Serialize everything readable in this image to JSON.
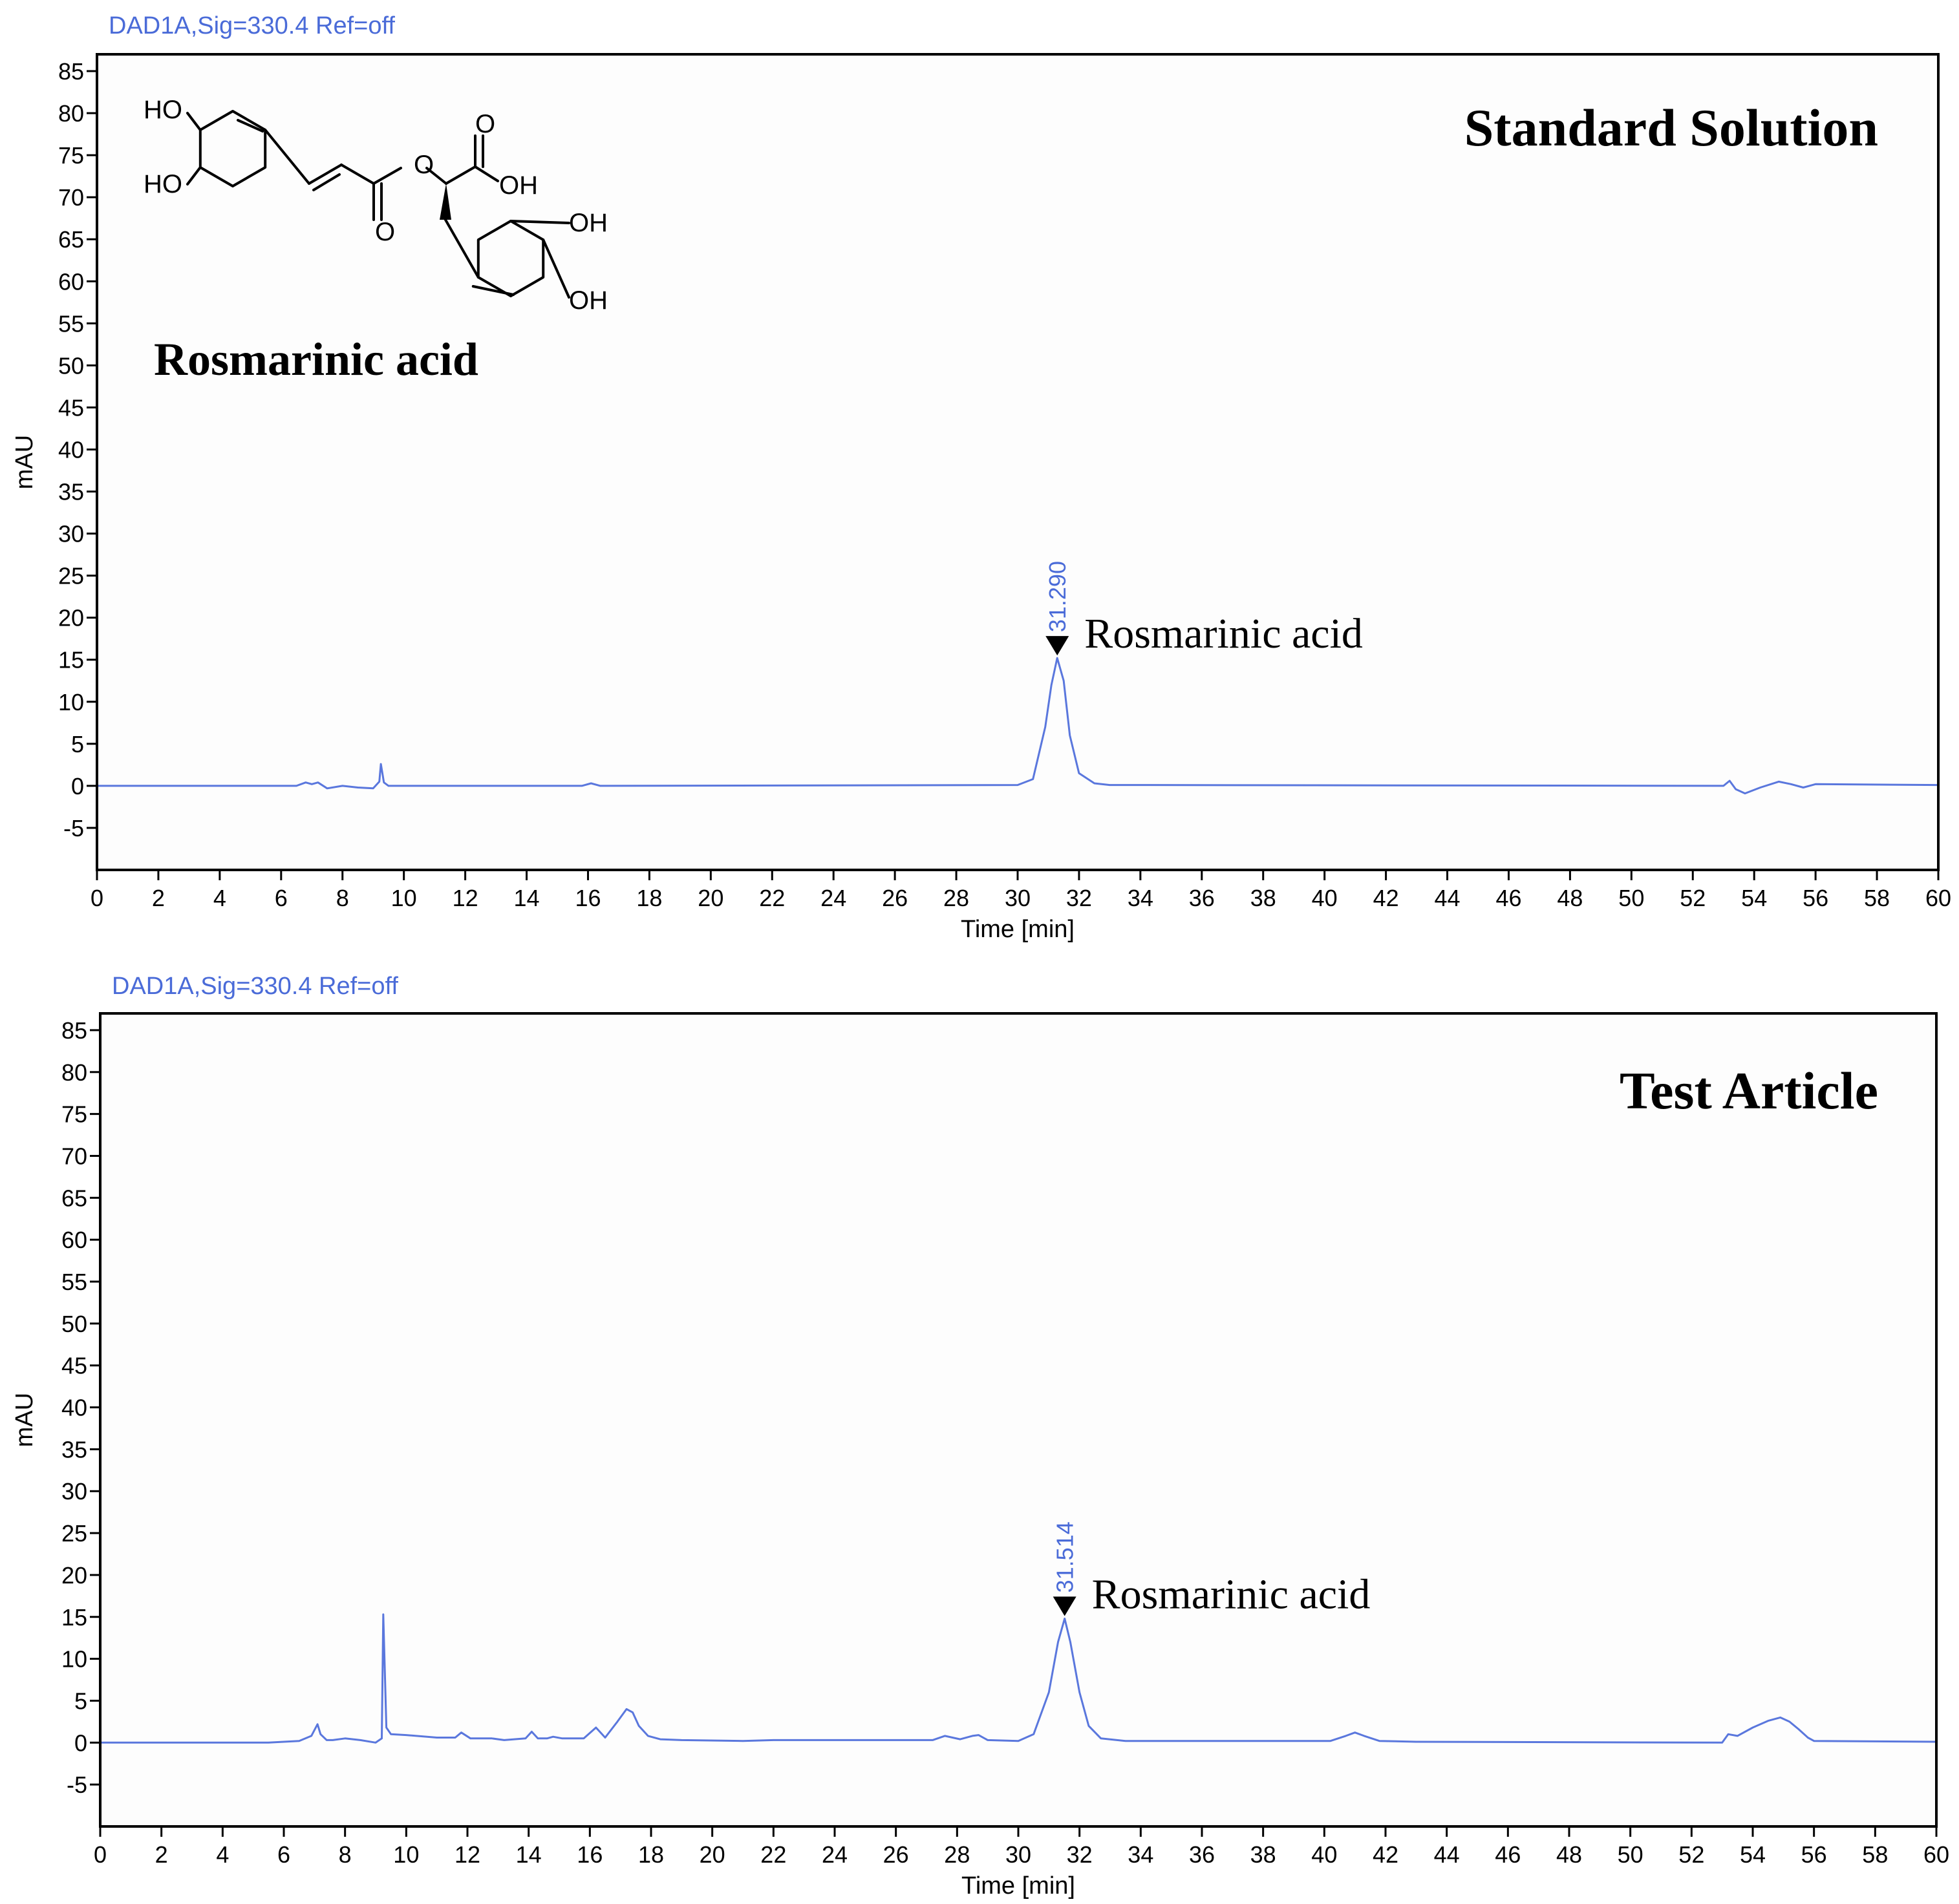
{
  "colors": {
    "trace": "#5A77DD",
    "signal_label": "#4A6BD8",
    "peak_label": "#4A6BD8",
    "axis": "#000000",
    "plot_background": "#FDFDFD",
    "page_background": "#FFFFFF"
  },
  "chart_data": [
    {
      "type": "line",
      "signal_label": "DAD1A,Sig=330.4  Ref=off",
      "panel_title": "Standard Solution",
      "inset": {
        "compound_name": "Rosmarinic acid",
        "structure_labels": [
          "HO",
          "HO",
          "O",
          "O",
          "O",
          "OH",
          "OH",
          "OH"
        ]
      },
      "xlabel": "Time [min]",
      "ylabel": "mAU",
      "xlim": [
        0,
        60
      ],
      "ylim": [
        -10,
        87
      ],
      "xticks": [
        0,
        2,
        4,
        6,
        8,
        10,
        12,
        14,
        16,
        18,
        20,
        22,
        24,
        26,
        28,
        30,
        32,
        34,
        36,
        38,
        40,
        42,
        44,
        46,
        48,
        50,
        52,
        54,
        56,
        58,
        60
      ],
      "yticks": [
        -5,
        0,
        5,
        10,
        15,
        20,
        25,
        30,
        35,
        40,
        45,
        50,
        55,
        60,
        65,
        70,
        75,
        80,
        85
      ],
      "peak": {
        "rt": 31.29,
        "rt_label": "31.290",
        "height": 15.2,
        "annotation": "Rosmarinic acid"
      },
      "series": [
        {
          "x": [
            0,
            6.5,
            6.8,
            7.0,
            7.2,
            7.5,
            8.0,
            8.5,
            9.0,
            9.2,
            9.25,
            9.35,
            9.5,
            10.0,
            15.8,
            16.1,
            16.4,
            30.0,
            30.5,
            30.9,
            31.1,
            31.29,
            31.5,
            31.7,
            32.0,
            32.5,
            33.0,
            53.0,
            53.2,
            53.4,
            53.7,
            54.2,
            54.8,
            55.2,
            55.6,
            56.0,
            60
          ],
          "y": [
            0,
            0,
            0.4,
            0.2,
            0.4,
            -0.3,
            0,
            -0.2,
            -0.3,
            0.5,
            2.6,
            0.4,
            0,
            0,
            0,
            0.3,
            0,
            0.1,
            0.8,
            7.0,
            12.0,
            15.2,
            12.5,
            6.0,
            1.5,
            0.3,
            0.1,
            0,
            0.6,
            -0.4,
            -0.9,
            -0.2,
            0.5,
            0.2,
            -0.2,
            0.2,
            0.1
          ]
        }
      ]
    },
    {
      "type": "line",
      "signal_label": "DAD1A,Sig=330.4  Ref=off",
      "panel_title": "Test Article",
      "xlabel": "Time [min]",
      "ylabel": "mAU",
      "xlim": [
        0,
        60
      ],
      "ylim": [
        -10,
        87
      ],
      "xticks": [
        0,
        2,
        4,
        6,
        8,
        10,
        12,
        14,
        16,
        18,
        20,
        22,
        24,
        26,
        28,
        30,
        32,
        34,
        36,
        38,
        40,
        42,
        44,
        46,
        48,
        50,
        52,
        54,
        56,
        58,
        60
      ],
      "yticks": [
        -5,
        0,
        5,
        10,
        15,
        20,
        25,
        30,
        35,
        40,
        45,
        50,
        55,
        60,
        65,
        70,
        75,
        80,
        85
      ],
      "peak": {
        "rt": 31.514,
        "rt_label": "31.514",
        "height": 14.8,
        "annotation": "Rosmarinic acid"
      },
      "series": [
        {
          "x": [
            0,
            5.5,
            6.5,
            6.9,
            7.1,
            7.2,
            7.4,
            7.6,
            8.0,
            8.5,
            9.0,
            9.2,
            9.25,
            9.35,
            9.5,
            10.0,
            11.0,
            11.6,
            11.8,
            12.1,
            12.8,
            13.2,
            13.9,
            14.1,
            14.3,
            14.6,
            14.8,
            15.1,
            15.8,
            16.2,
            16.5,
            16.9,
            17.2,
            17.4,
            17.6,
            17.9,
            18.3,
            19.0,
            21.0,
            22.0,
            27.2,
            27.6,
            28.1,
            28.5,
            28.7,
            29.0,
            30.0,
            30.5,
            31.0,
            31.3,
            31.514,
            31.7,
            32.0,
            32.3,
            32.7,
            33.5,
            40.2,
            40.7,
            41.0,
            41.3,
            41.8,
            43.0,
            53.0,
            53.2,
            53.5,
            54.0,
            54.5,
            54.9,
            55.2,
            55.5,
            55.8,
            56.0,
            60
          ],
          "y": [
            0,
            0,
            0.2,
            0.8,
            2.2,
            1.0,
            0.3,
            0.3,
            0.5,
            0.3,
            0.0,
            0.5,
            15.3,
            1.8,
            1.0,
            0.9,
            0.6,
            0.6,
            1.2,
            0.5,
            0.5,
            0.3,
            0.5,
            1.3,
            0.5,
            0.5,
            0.7,
            0.5,
            0.5,
            1.8,
            0.6,
            2.5,
            4.0,
            3.6,
            2.0,
            0.8,
            0.4,
            0.3,
            0.2,
            0.3,
            0.3,
            0.8,
            0.4,
            0.8,
            0.9,
            0.3,
            0.2,
            1.0,
            6.0,
            12.0,
            14.8,
            12.0,
            6.0,
            2.0,
            0.5,
            0.2,
            0.2,
            0.8,
            1.2,
            0.8,
            0.2,
            0.1,
            0,
            1.0,
            0.8,
            1.8,
            2.6,
            3.0,
            2.5,
            1.6,
            0.6,
            0.2,
            0.1
          ]
        }
      ]
    }
  ]
}
